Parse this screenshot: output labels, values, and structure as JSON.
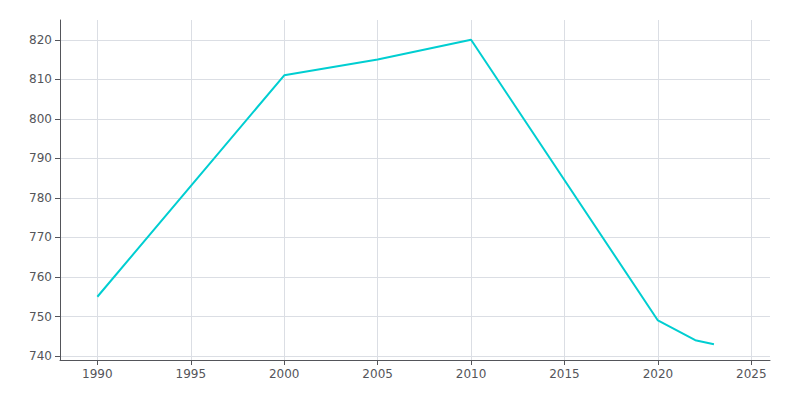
{
  "chart_data": {
    "type": "line",
    "x": [
      1990,
      2000,
      2005,
      2010,
      2020,
      2022,
      2023
    ],
    "values": [
      755,
      811,
      815,
      820,
      749,
      744,
      743
    ],
    "color": "#00CED1",
    "xlim": [
      1988,
      2026
    ],
    "xticks": [
      1990,
      1995,
      2000,
      2005,
      2010,
      2015,
      2020,
      2025
    ],
    "ylim": [
      739,
      825
    ],
    "yticks": [
      740,
      750,
      760,
      770,
      780,
      790,
      800,
      810,
      820
    ],
    "grid": true
  }
}
